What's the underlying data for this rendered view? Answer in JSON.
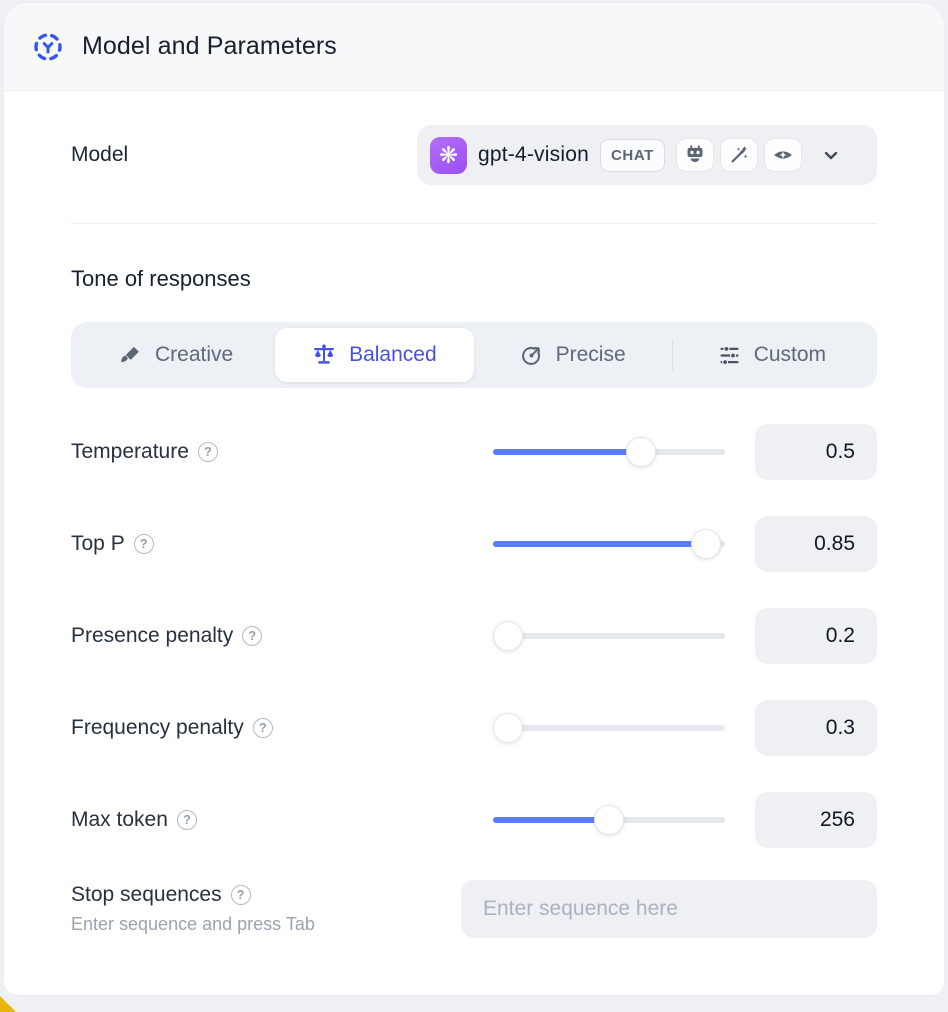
{
  "header": {
    "title": "Model and Parameters"
  },
  "model": {
    "label": "Model",
    "selected": {
      "name": "gpt-4-vision",
      "type_badge": "CHAT",
      "capabilities": [
        "assistant",
        "magic-enhance",
        "vision"
      ]
    }
  },
  "tone": {
    "heading": "Tone of responses",
    "tabs": [
      {
        "label": "Creative",
        "icon": "paintbrush-icon",
        "active": false
      },
      {
        "label": "Balanced",
        "icon": "balance-scale-icon",
        "active": true
      },
      {
        "label": "Precise",
        "icon": "target-icon",
        "active": false
      },
      {
        "label": "Custom",
        "icon": "sliders-icon",
        "active": false
      }
    ]
  },
  "parameters": [
    {
      "label": "Temperature",
      "value": "0.5",
      "slider_percent": 66
    },
    {
      "label": "Top P",
      "value": "0.85",
      "slider_percent": 98
    },
    {
      "label": "Presence penalty",
      "value": "0.2",
      "slider_percent": 0
    },
    {
      "label": "Frequency penalty",
      "value": "0.3",
      "slider_percent": 0
    },
    {
      "label": "Max token",
      "value": "256",
      "slider_percent": 50
    }
  ],
  "stop_sequences": {
    "label": "Stop sequences",
    "hint": "Enter sequence and press Tab",
    "placeholder": "Enter sequence here"
  },
  "icons": {
    "help": "?",
    "openai_logo_glyph": "❋"
  },
  "colors": {
    "accent_blue": "#5b7cfa",
    "active_indigo": "#4450e6",
    "header_bg": "#f7f8fa",
    "control_bg": "#eef0f4",
    "provider_purple": "#a55bf6",
    "corner_accent_yellow": "#e7b50c"
  }
}
